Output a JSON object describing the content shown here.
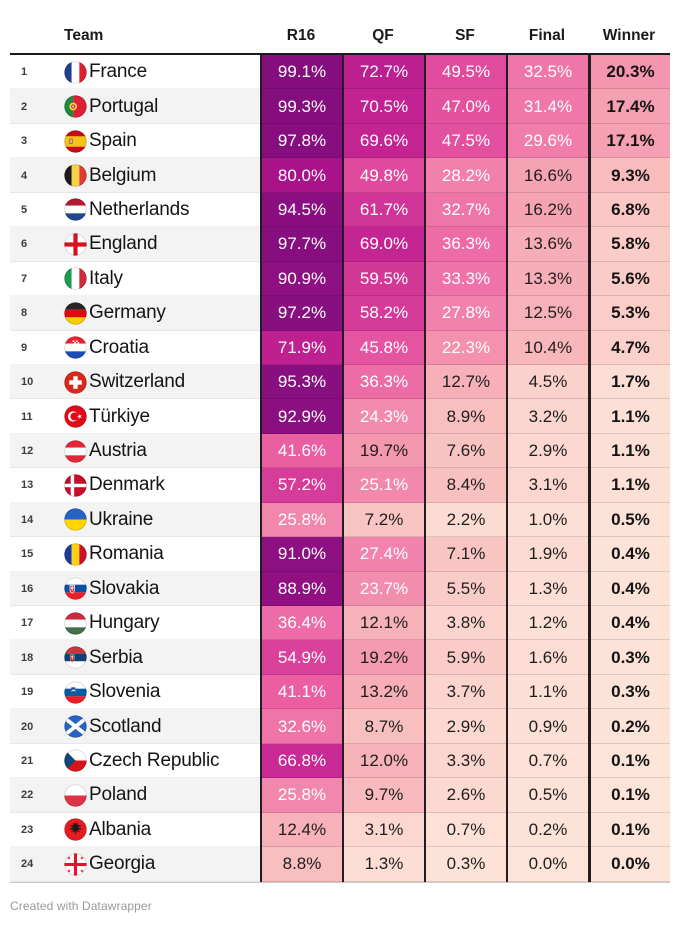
{
  "chart_data": {
    "type": "table",
    "columns": [
      "Team",
      "R16",
      "QF",
      "SF",
      "Final",
      "Winner"
    ],
    "value_unit": "%",
    "rows": [
      {
        "rank": 1,
        "team": "France",
        "flag": "fr",
        "values": [
          99.1,
          72.7,
          49.5,
          32.5,
          20.3
        ]
      },
      {
        "rank": 2,
        "team": "Portugal",
        "flag": "pt",
        "values": [
          99.3,
          70.5,
          47.0,
          31.4,
          17.4
        ]
      },
      {
        "rank": 3,
        "team": "Spain",
        "flag": "es",
        "values": [
          97.8,
          69.6,
          47.5,
          29.6,
          17.1
        ]
      },
      {
        "rank": 4,
        "team": "Belgium",
        "flag": "be",
        "values": [
          80.0,
          49.8,
          28.2,
          16.6,
          9.3
        ]
      },
      {
        "rank": 5,
        "team": "Netherlands",
        "flag": "nl",
        "values": [
          94.5,
          61.7,
          32.7,
          16.2,
          6.8
        ]
      },
      {
        "rank": 6,
        "team": "England",
        "flag": "en",
        "values": [
          97.7,
          69.0,
          36.3,
          13.6,
          5.8
        ]
      },
      {
        "rank": 7,
        "team": "Italy",
        "flag": "it",
        "values": [
          90.9,
          59.5,
          33.3,
          13.3,
          5.6
        ]
      },
      {
        "rank": 8,
        "team": "Germany",
        "flag": "de",
        "values": [
          97.2,
          58.2,
          27.8,
          12.5,
          5.3
        ]
      },
      {
        "rank": 9,
        "team": "Croatia",
        "flag": "hr",
        "values": [
          71.9,
          45.8,
          22.3,
          10.4,
          4.7
        ]
      },
      {
        "rank": 10,
        "team": "Switzerland",
        "flag": "ch",
        "values": [
          95.3,
          36.3,
          12.7,
          4.5,
          1.7
        ]
      },
      {
        "rank": 11,
        "team": "Türkiye",
        "flag": "tr",
        "values": [
          92.9,
          24.3,
          8.9,
          3.2,
          1.1
        ]
      },
      {
        "rank": 12,
        "team": "Austria",
        "flag": "at",
        "values": [
          41.6,
          19.7,
          7.6,
          2.9,
          1.1
        ]
      },
      {
        "rank": 13,
        "team": "Denmark",
        "flag": "dk",
        "values": [
          57.2,
          25.1,
          8.4,
          3.1,
          1.1
        ]
      },
      {
        "rank": 14,
        "team": "Ukraine",
        "flag": "ua",
        "values": [
          25.8,
          7.2,
          2.2,
          1.0,
          0.5
        ]
      },
      {
        "rank": 15,
        "team": "Romania",
        "flag": "ro",
        "values": [
          91.0,
          27.4,
          7.1,
          1.9,
          0.4
        ]
      },
      {
        "rank": 16,
        "team": "Slovakia",
        "flag": "sk",
        "values": [
          88.9,
          23.7,
          5.5,
          1.3,
          0.4
        ]
      },
      {
        "rank": 17,
        "team": "Hungary",
        "flag": "hu",
        "values": [
          36.4,
          12.1,
          3.8,
          1.2,
          0.4
        ]
      },
      {
        "rank": 18,
        "team": "Serbia",
        "flag": "rs",
        "values": [
          54.9,
          19.2,
          5.9,
          1.6,
          0.3
        ]
      },
      {
        "rank": 19,
        "team": "Slovenia",
        "flag": "si",
        "values": [
          41.1,
          13.2,
          3.7,
          1.1,
          0.3
        ]
      },
      {
        "rank": 20,
        "team": "Scotland",
        "flag": "sct",
        "values": [
          32.6,
          8.7,
          2.9,
          0.9,
          0.2
        ]
      },
      {
        "rank": 21,
        "team": "Czech Republic",
        "flag": "cz",
        "values": [
          66.8,
          12.0,
          3.3,
          0.7,
          0.1
        ]
      },
      {
        "rank": 22,
        "team": "Poland",
        "flag": "pl",
        "values": [
          25.8,
          9.7,
          2.6,
          0.5,
          0.1
        ]
      },
      {
        "rank": 23,
        "team": "Albania",
        "flag": "al",
        "values": [
          12.4,
          3.1,
          0.7,
          0.2,
          0.1
        ]
      },
      {
        "rank": 24,
        "team": "Georgia",
        "flag": "ge",
        "values": [
          8.8,
          1.3,
          0.3,
          0.0,
          0.0
        ]
      }
    ]
  },
  "color_scale": {
    "white_text_min": 21,
    "stops": [
      {
        "value": 0,
        "color": "#fde4d8"
      },
      {
        "value": 10,
        "color": "#f8b9bb"
      },
      {
        "value": 20,
        "color": "#f497b0"
      },
      {
        "value": 30,
        "color": "#f07caa"
      },
      {
        "value": 40,
        "color": "#ec62a3"
      },
      {
        "value": 50,
        "color": "#e04a9d"
      },
      {
        "value": 60,
        "color": "#d23797"
      },
      {
        "value": 70,
        "color": "#c32392"
      },
      {
        "value": 80,
        "color": "#a81389"
      },
      {
        "value": 90,
        "color": "#8d1081"
      },
      {
        "value": 100,
        "color": "#840e7f"
      }
    ]
  },
  "footer": {
    "credit": "Created with Datawrapper"
  }
}
